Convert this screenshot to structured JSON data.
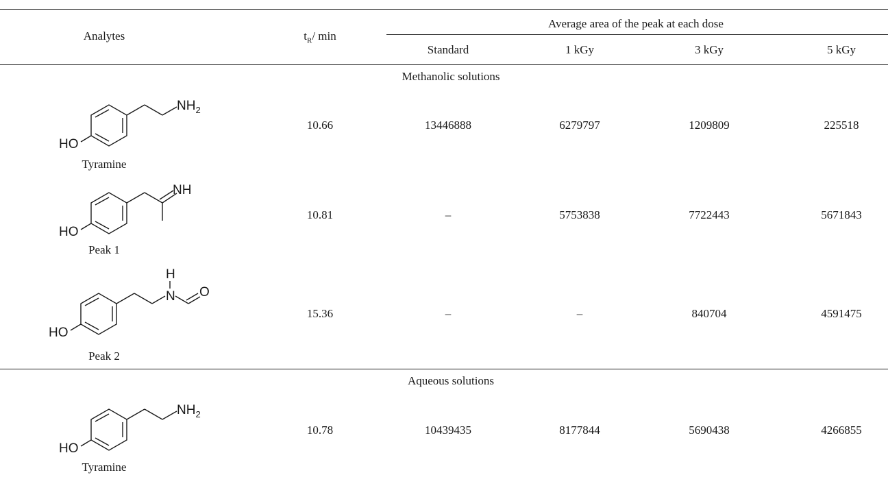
{
  "header": {
    "col_analytes": "Analytes",
    "col_tr_main": "t",
    "col_tr_sub": "R",
    "col_tr_unit": "/ min",
    "group_label": "Average area of the peak at each dose",
    "doses": [
      "Standard",
      "1 kGy",
      "3 kGy",
      "5 kGy"
    ]
  },
  "sections": [
    {
      "label": "Methanolic solutions",
      "rows": [
        {
          "name": "Tyramine",
          "tr": "10.66",
          "values": [
            "13446888",
            "6279797",
            "1209809",
            "225518"
          ],
          "struct": {
            "ho": "HO",
            "amine": "NH",
            "amine_sub": "2"
          }
        },
        {
          "name": "Peak 1",
          "tr": "10.81",
          "values": [
            "–",
            "5753838",
            "7722443",
            "5671843"
          ],
          "struct": {
            "ho": "HO",
            "imine": "NH"
          }
        },
        {
          "name": "Peak 2",
          "tr": "15.36",
          "values": [
            "–",
            "–",
            "840704",
            "4591475"
          ],
          "struct": {
            "ho": "HO",
            "h": "H",
            "n": "N",
            "o": "O"
          }
        }
      ]
    },
    {
      "label": "Aqueous solutions",
      "rows": [
        {
          "name": "Tyramine",
          "tr": "10.78",
          "values": [
            "10439435",
            "8177844",
            "5690438",
            "4266855"
          ],
          "struct": {
            "ho": "HO",
            "amine": "NH",
            "amine_sub": "2"
          }
        }
      ]
    }
  ]
}
